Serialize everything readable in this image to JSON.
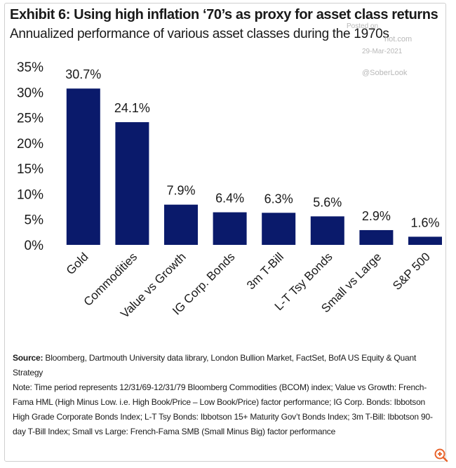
{
  "header": {
    "title": "Exhibit 6: Using high inflation ‘70’s as proxy for asset class returns",
    "subtitle": "Annualized performance of various asset classes during the 1970s"
  },
  "watermark": {
    "posted": "Posted on",
    "site": "hot.com",
    "date": "29-Mar-2021",
    "handle": "@SoberLook"
  },
  "chart_data": {
    "type": "bar",
    "categories": [
      "Gold",
      "Commodities",
      "Value vs Growth",
      "IG Corp. Bonds",
      "3m T-Bill",
      "L-T Tsy Bonds",
      "Small vs Large",
      "S&P 500"
    ],
    "values": [
      30.7,
      24.1,
      7.9,
      6.4,
      6.3,
      5.6,
      2.9,
      1.6
    ],
    "value_labels": [
      "30.7%",
      "24.1%",
      "7.9%",
      "6.4%",
      "6.3%",
      "5.6%",
      "2.9%",
      "1.6%"
    ],
    "yticks": [
      0,
      5,
      10,
      15,
      20,
      25,
      30,
      35
    ],
    "ytick_labels": [
      "0%",
      "5%",
      "10%",
      "15%",
      "20%",
      "25%",
      "30%",
      "35%"
    ],
    "ylim": [
      0,
      35
    ],
    "grid": false,
    "legend": "none",
    "bar_color": "#0a1a6b"
  },
  "footer": {
    "source_label": "Source:",
    "source_text": " Bloomberg, Dartmouth University data library, London Bullion Market, FactSet, BofA US Equity & Quant Strategy",
    "note": "Note: Time period represents 12/31/69-12/31/79  Bloomberg Commodities (BCOM) index; Value vs Growth: French-Fama HML (High Minus Low. i.e. High Book/Price – Low Book/Price) factor performance; IG Corp. Bonds: Ibbotson High Grade Corporate Bonds Index; L-T Tsy Bonds: Ibbotson 15+ Maturity Gov’t Bonds Index; 3m T-Bill: Ibbotson 90-day T-Bill Index; Small vs Large: French-Fama SMB (Small Minus Big) factor performance"
  },
  "controls": {
    "zoom_icon": "zoom-in-icon",
    "zoom_color": "#e8632b"
  }
}
